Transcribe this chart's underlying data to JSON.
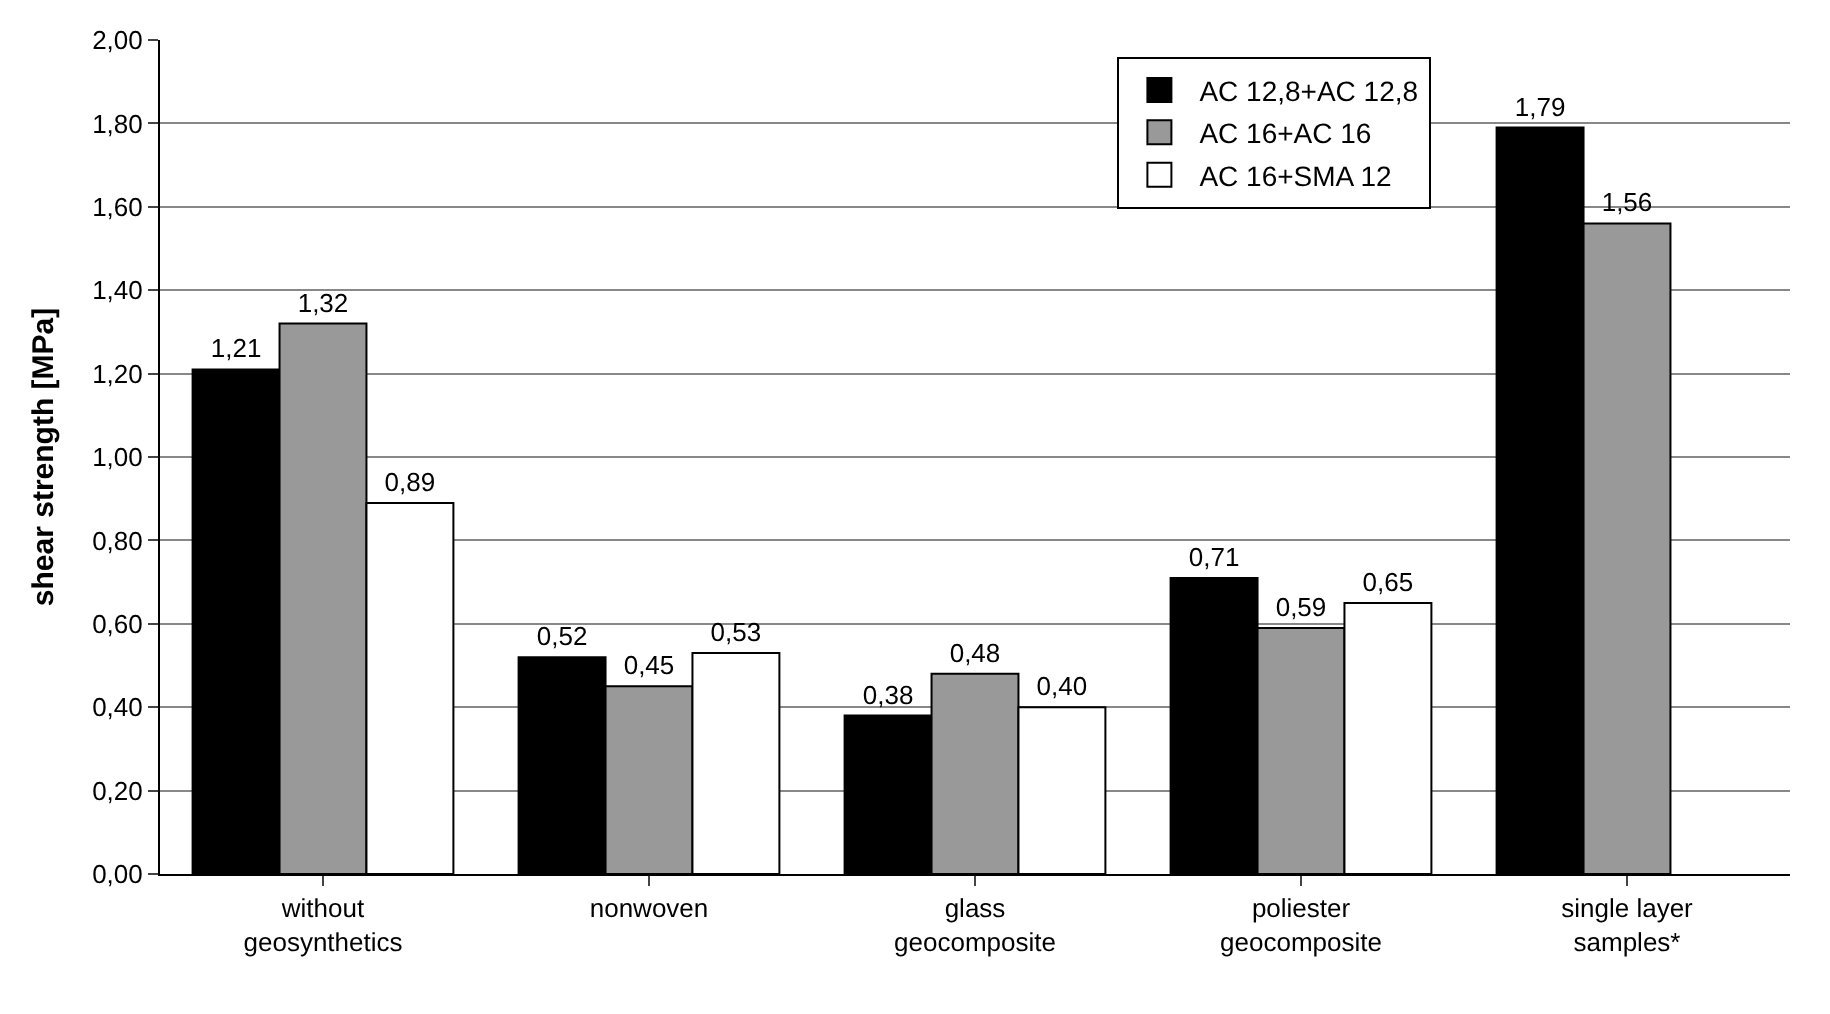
{
  "chart_data": {
    "type": "bar",
    "ylabel": "shear strength [MPa]",
    "categories": [
      "without\ngeosynthetics",
      "nonwoven",
      "glass\ngeocomposite",
      "poliester\ngeocomposite",
      "single layer\nsamples*"
    ],
    "series": [
      {
        "name": "AC 12,8+AC 12,8",
        "color": "#000000",
        "values": [
          1.21,
          0.52,
          0.38,
          0.71,
          1.79
        ],
        "value_labels": [
          "1,21",
          "0,52",
          "0,38",
          "0,71",
          "1,79"
        ]
      },
      {
        "name": "AC 16+AC 16",
        "color": "#999999",
        "values": [
          1.32,
          0.45,
          0.48,
          0.59,
          1.56
        ],
        "value_labels": [
          "1,32",
          "0,45",
          "0,48",
          "0,59",
          "1,56"
        ]
      },
      {
        "name": "AC 16+SMA 12",
        "color": "#ffffff",
        "values": [
          0.89,
          0.53,
          0.4,
          0.65,
          null
        ],
        "value_labels": [
          "0,89",
          "0,53",
          "0,40",
          "0,65",
          null
        ]
      }
    ],
    "ylim": [
      0,
      2
    ],
    "yticks": [
      {
        "value": 0,
        "label": "0,00"
      },
      {
        "value": 0.2,
        "label": "0,20"
      },
      {
        "value": 0.4,
        "label": "0,40"
      },
      {
        "value": 0.6,
        "label": "0,60"
      },
      {
        "value": 0.8,
        "label": "0,80"
      },
      {
        "value": 1.0,
        "label": "1,00"
      },
      {
        "value": 1.2,
        "label": "1,20"
      },
      {
        "value": 1.4,
        "label": "1,40"
      },
      {
        "value": 1.6,
        "label": "1,60"
      },
      {
        "value": 1.8,
        "label": "1,80"
      },
      {
        "value": 2.0,
        "label": "2,00"
      }
    ],
    "grid": "y",
    "legend": "top right"
  }
}
